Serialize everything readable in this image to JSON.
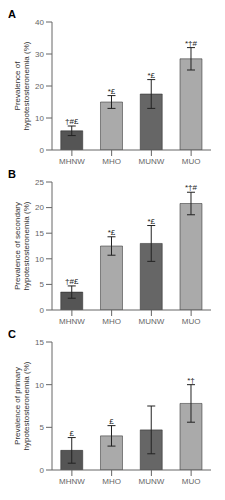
{
  "chart_data": [
    {
      "type": "bar",
      "title": "A",
      "ylabel": "Prevalence of\nhypotestosteronemia (%)",
      "categories": [
        "MHNW",
        "MHO",
        "MUNW",
        "MUO"
      ],
      "values": [
        6.0,
        15.0,
        17.5,
        28.5
      ],
      "errors": [
        1.5,
        2.0,
        4.5,
        3.5
      ],
      "annotations": [
        "†#£",
        "*£",
        "*£",
        "*†#"
      ],
      "colors": [
        "#555555",
        "#aaaaaa",
        "#666666",
        "#aaaaaa"
      ],
      "ylim": [
        0,
        40
      ],
      "yticks": [
        0,
        10,
        20,
        30,
        40
      ],
      "grid": false
    },
    {
      "type": "bar",
      "title": "B",
      "ylabel": "Prevalence of secondary\nhypotestosteronemia (%)",
      "categories": [
        "MHNW",
        "MHO",
        "MUNW",
        "MUO"
      ],
      "values": [
        3.5,
        12.5,
        13.0,
        20.8
      ],
      "errors": [
        1.2,
        1.8,
        3.5,
        2.2
      ],
      "annotations": [
        "†#£",
        "*£",
        "*£",
        "*†#"
      ],
      "colors": [
        "#555555",
        "#aaaaaa",
        "#666666",
        "#aaaaaa"
      ],
      "ylim": [
        0,
        25
      ],
      "yticks": [
        0,
        5,
        10,
        15,
        20,
        25
      ],
      "grid": false
    },
    {
      "type": "bar",
      "title": "C",
      "ylabel": "Prevalence of primary\nhypotestosteronemia (%)",
      "categories": [
        "MHNW",
        "MHO",
        "MUNW",
        "MUO"
      ],
      "values": [
        2.3,
        4.0,
        4.7,
        7.8
      ],
      "errors": [
        1.5,
        1.2,
        2.8,
        2.2
      ],
      "annotations": [
        "£",
        "£",
        null,
        "*†"
      ],
      "colors": [
        "#555555",
        "#aaaaaa",
        "#666666",
        "#aaaaaa"
      ],
      "ylim": [
        0,
        15
      ],
      "yticks": [
        0,
        5,
        10,
        15
      ],
      "grid": false
    }
  ]
}
